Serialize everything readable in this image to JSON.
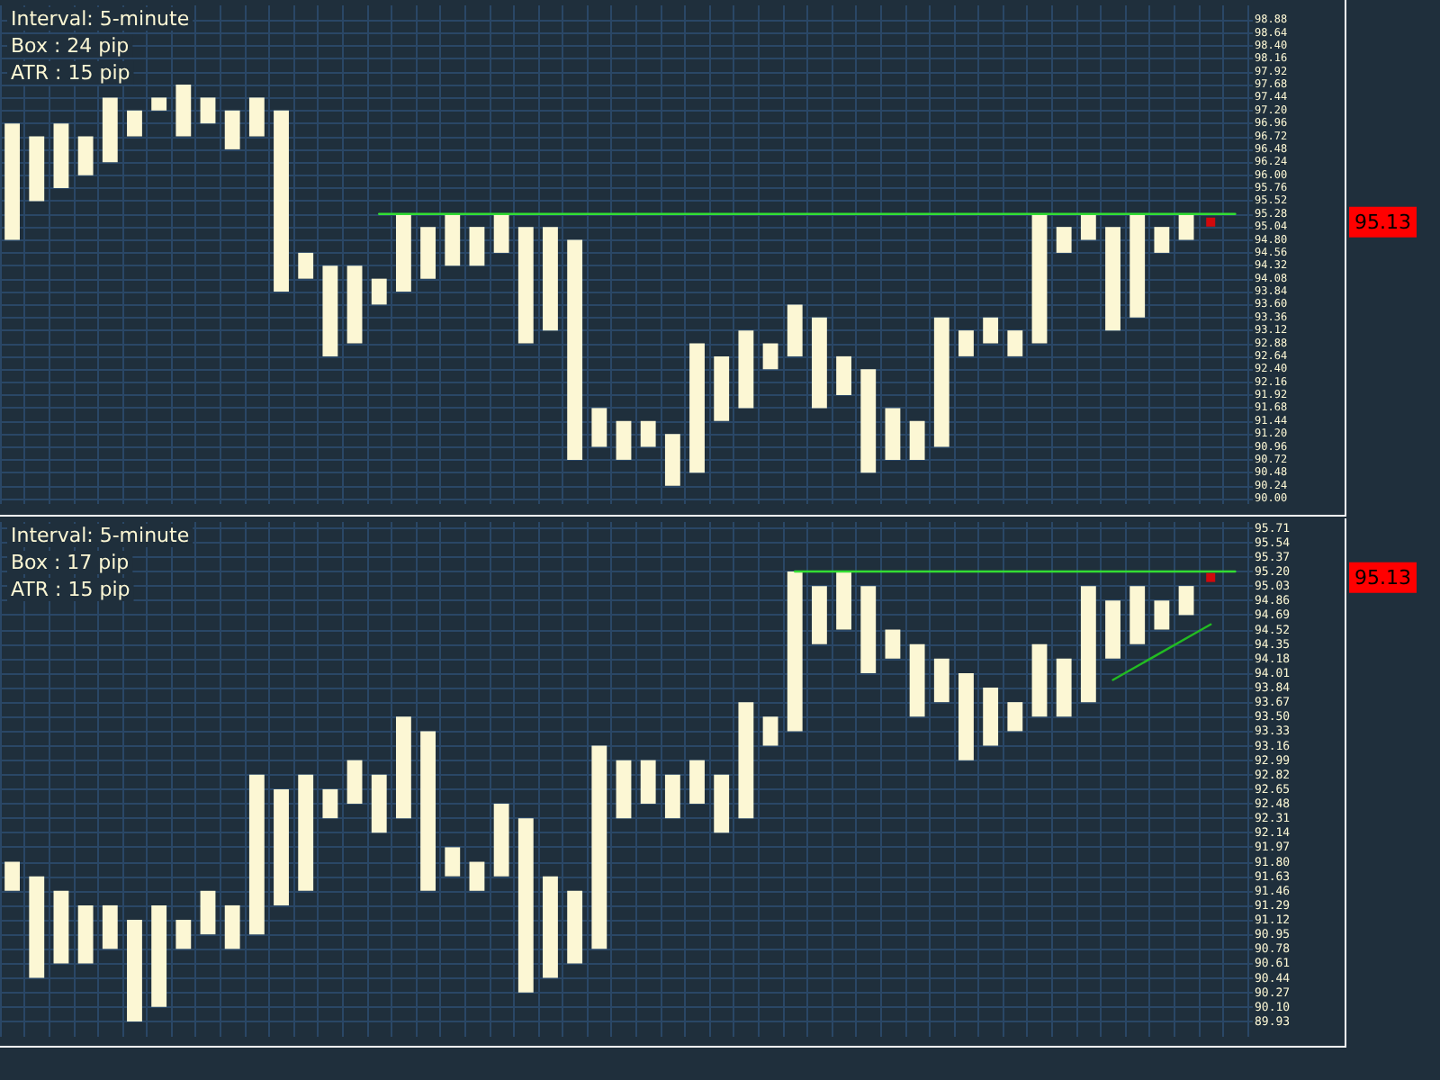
{
  "chart_data": [
    {
      "type": "bar",
      "categories": [
        null,
        null,
        null,
        null,
        null,
        null,
        null,
        null,
        null,
        null,
        null,
        null,
        null,
        null,
        null,
        null,
        null,
        null,
        null,
        null,
        null,
        null,
        null,
        null,
        null,
        null,
        null,
        null,
        null,
        null,
        null,
        null,
        null,
        null,
        null,
        null,
        null,
        null,
        null,
        null,
        null,
        null,
        null,
        null,
        null,
        null,
        null,
        null,
        null,
        null,
        null
      ],
      "ylim": [
        89.9,
        99.15
      ],
      "yticks": [
        {
          "value": 90,
          "label": "90.00"
        },
        90.24,
        90.48,
        90.72,
        90.96,
        {
          "value": 91.2,
          "label": "91.20"
        },
        91.44,
        91.68,
        91.92,
        92.16,
        {
          "value": 92.4,
          "label": "92.40"
        },
        92.64,
        92.88,
        93.12,
        93.36,
        {
          "value": 93.6,
          "label": "93.60"
        },
        93.84,
        94.08,
        94.32,
        94.56,
        {
          "value": 94.8,
          "label": "94.80"
        },
        95.04,
        95.28,
        95.52,
        95.76,
        {
          "value": 96,
          "label": "96.00"
        },
        96.24,
        96.48,
        96.72,
        96.96,
        {
          "value": 97.2,
          "label": "97.20"
        },
        97.44,
        97.68,
        97.92,
        98.16,
        {
          "value": 98.4,
          "label": "98.40"
        },
        98.64,
        98.88
      ],
      "grid": true,
      "tick_labels": "y",
      "annotations": [
        "Interval: 5-minute",
        "Box : 24 pip",
        "ATR : 15 pip",
        "95.13"
      ],
      "series": [
        {
          "color": "#fcf7d4",
          "values": [
            2.16,
            null,
            1.2,
            null,
            1.2,
            null,
            0.24,
            null,
            0.48,
            null,
            0.72,
            null,
            0.48,
            null,
            1.44,
            null,
            1.44,
            null,
            0.96,
            null,
            0.72,
            null,
            1.92,
            null,
            0.72,
            null,
            0.48,
            null,
            2.4,
            null,
            1.44,
            null,
            0.96,
            null,
            0.72,
            null,
            0.96,
            null,
            2.4,
            null,
            0.48,
            null,
            2.4,
            null,
            0.48,
            null,
            1.92,
            null,
            0.48,
            null,
            null
          ],
          "base": [
            94.8,
            null,
            95.76,
            null,
            96.24,
            null,
            97.2,
            null,
            96.96,
            null,
            96.72,
            null,
            94.08,
            null,
            92.88,
            null,
            93.84,
            null,
            94.32,
            null,
            94.56,
            null,
            93.12,
            null,
            90.96,
            null,
            90.96,
            null,
            90.48,
            null,
            91.68,
            null,
            92.64,
            null,
            91.92,
            null,
            90.72,
            null,
            90.96,
            null,
            92.88,
            null,
            92.88,
            null,
            94.8,
            null,
            93.36,
            null,
            94.8,
            null,
            null
          ]
        },
        {
          "color": "#fcf7d4",
          "values": [
            null,
            1.2,
            null,
            0.72,
            null,
            0.48,
            null,
            0.96,
            null,
            0.72,
            null,
            3.36,
            null,
            1.68,
            null,
            0.48,
            null,
            0.96,
            null,
            0.72,
            null,
            2.16,
            null,
            4.08,
            null,
            0.72,
            null,
            0.96,
            null,
            1.2,
            null,
            0.48,
            null,
            1.68,
            null,
            1.92,
            null,
            0.72,
            null,
            0.48,
            null,
            0.48,
            null,
            0.48,
            null,
            1.92,
            null,
            0.48,
            null,
            null,
            null
          ],
          "base": [
            null,
            95.52,
            null,
            96,
            null,
            96.72,
            null,
            96.72,
            null,
            96.48,
            null,
            93.84,
            null,
            92.64,
            null,
            93.6,
            null,
            94.08,
            null,
            94.32,
            null,
            92.88,
            null,
            90.72,
            null,
            90.72,
            null,
            90.24,
            null,
            91.44,
            null,
            92.4,
            null,
            91.68,
            null,
            90.48,
            null,
            90.72,
            null,
            92.64,
            null,
            92.64,
            null,
            94.56,
            null,
            93.12,
            null,
            94.56,
            null,
            null,
            null
          ]
        },
        {
          "type": "line",
          "marker": "none",
          "color": "#33dd33",
          "values": [
            null,
            null,
            null,
            null,
            null,
            null,
            null,
            null,
            null,
            null,
            null,
            null,
            null,
            null,
            null,
            95.28,
            null,
            null,
            null,
            null,
            null,
            null,
            null,
            null,
            null,
            null,
            null,
            null,
            null,
            null,
            null,
            null,
            null,
            null,
            null,
            null,
            null,
            null,
            null,
            null,
            null,
            null,
            null,
            null,
            null,
            null,
            null,
            null,
            null,
            null,
            95.28
          ]
        },
        {
          "type": "scatter",
          "marker": "square",
          "color": "#ff0000",
          "values": [
            null,
            null,
            null,
            null,
            null,
            null,
            null,
            null,
            null,
            null,
            null,
            null,
            null,
            null,
            null,
            null,
            null,
            null,
            null,
            null,
            null,
            null,
            null,
            null,
            null,
            null,
            null,
            null,
            null,
            null,
            null,
            null,
            null,
            null,
            null,
            null,
            null,
            null,
            null,
            null,
            null,
            null,
            null,
            null,
            null,
            null,
            null,
            null,
            null,
            95.13,
            null
          ]
        }
      ]
    },
    {
      "type": "bar",
      "categories": [
        null,
        null,
        null,
        null,
        null,
        null,
        null,
        null,
        null,
        null,
        null,
        null,
        null,
        null,
        null,
        null,
        null,
        null,
        null,
        null,
        null,
        null,
        null,
        null,
        null,
        null,
        null,
        null,
        null,
        null,
        null,
        null,
        null,
        null,
        null,
        null,
        null,
        null,
        null,
        null,
        null,
        null,
        null,
        null,
        null,
        null,
        null,
        null,
        null,
        null,
        null
      ],
      "ylim": [
        89.75,
        95.78
      ],
      "yticks": [
        89.93,
        {
          "value": 90.1,
          "label": "90.10"
        },
        90.27,
        90.44,
        90.61,
        90.78,
        90.95,
        91.12,
        91.29,
        91.46,
        91.63,
        {
          "value": 91.8,
          "label": "91.80"
        },
        91.97,
        92.14,
        92.31,
        92.48,
        92.65,
        92.82,
        92.99,
        93.16,
        93.33,
        {
          "value": 93.5,
          "label": "93.50"
        },
        93.67,
        93.84,
        94.01,
        94.18,
        94.35,
        94.52,
        94.69,
        94.86,
        95.03,
        {
          "value": 95.2,
          "label": "95.20"
        },
        95.37,
        95.54,
        95.71
      ],
      "grid": true,
      "tick_labels": "y",
      "annotations": [
        "Interval: 5-minute",
        "Box : 17 pip",
        "ATR : 15 pip",
        "95.13"
      ],
      "series": [
        {
          "color": "#fcf7d4",
          "values": [
            0.34,
            null,
            0.85,
            null,
            0.51,
            null,
            1.19,
            null,
            0.51,
            null,
            1.87,
            null,
            1.36,
            null,
            0.51,
            null,
            1.19,
            null,
            0.34,
            null,
            0.85,
            null,
            1.19,
            null,
            2.38,
            null,
            0.51,
            null,
            0.51,
            null,
            1.36,
            null,
            1.87,
            null,
            0.68,
            null,
            0.34,
            null,
            0.51,
            null,
            0.68,
            null,
            0.85,
            null,
            1.36,
            null,
            0.68,
            null,
            0.34,
            null,
            null
          ],
          "base": [
            91.46,
            null,
            90.61,
            null,
            90.78,
            null,
            90.1,
            null,
            90.95,
            null,
            90.95,
            null,
            91.46,
            null,
            92.48,
            null,
            92.31,
            null,
            91.63,
            null,
            91.63,
            null,
            90.44,
            null,
            90.78,
            null,
            92.48,
            null,
            92.48,
            null,
            92.31,
            null,
            93.33,
            null,
            94.52,
            null,
            94.18,
            null,
            93.67,
            null,
            93.16,
            null,
            93.5,
            null,
            93.67,
            null,
            94.35,
            null,
            94.69,
            null,
            null
          ]
        },
        {
          "color": "#fcf7d4",
          "values": [
            null,
            1.19,
            null,
            0.68,
            null,
            1.19,
            null,
            0.34,
            null,
            0.51,
            null,
            1.36,
            null,
            0.34,
            null,
            0.68,
            null,
            1.87,
            null,
            0.34,
            null,
            2.04,
            null,
            0.85,
            null,
            0.68,
            null,
            0.51,
            null,
            0.68,
            null,
            0.34,
            null,
            0.68,
            null,
            1.02,
            null,
            0.85,
            null,
            1.02,
            null,
            0.34,
            null,
            0.68,
            null,
            0.68,
            null,
            0.34,
            null,
            null,
            null
          ],
          "base": [
            null,
            90.44,
            null,
            90.61,
            null,
            89.93,
            null,
            90.78,
            null,
            90.78,
            null,
            91.29,
            null,
            92.31,
            null,
            92.14,
            null,
            91.46,
            null,
            91.46,
            null,
            90.27,
            null,
            90.61,
            null,
            92.31,
            null,
            92.31,
            null,
            92.14,
            null,
            93.16,
            null,
            94.35,
            null,
            94.01,
            null,
            93.5,
            null,
            92.99,
            null,
            93.33,
            null,
            93.5,
            null,
            94.18,
            null,
            94.52,
            null,
            null,
            null
          ]
        },
        {
          "type": "line",
          "marker": "none",
          "color": "#33dd33",
          "values": [
            null,
            null,
            null,
            null,
            null,
            null,
            null,
            null,
            null,
            null,
            null,
            null,
            null,
            null,
            null,
            null,
            null,
            null,
            null,
            null,
            null,
            null,
            null,
            null,
            null,
            null,
            null,
            null,
            null,
            null,
            null,
            null,
            95.2,
            null,
            null,
            null,
            null,
            null,
            null,
            null,
            null,
            null,
            null,
            null,
            null,
            null,
            null,
            null,
            null,
            null,
            95.2
          ]
        },
        {
          "type": "line",
          "marker": "none",
          "color": "#22bb22",
          "values": [
            null,
            null,
            null,
            null,
            null,
            null,
            null,
            null,
            null,
            null,
            null,
            null,
            null,
            null,
            null,
            null,
            null,
            null,
            null,
            null,
            null,
            null,
            null,
            null,
            null,
            null,
            null,
            null,
            null,
            null,
            null,
            null,
            null,
            null,
            null,
            null,
            null,
            null,
            null,
            null,
            null,
            null,
            null,
            null,
            null,
            93.93,
            null,
            null,
            null,
            94.58,
            null
          ]
        },
        {
          "type": "scatter",
          "marker": "square",
          "color": "#ff0000",
          "values": [
            null,
            null,
            null,
            null,
            null,
            null,
            null,
            null,
            null,
            null,
            null,
            null,
            null,
            null,
            null,
            null,
            null,
            null,
            null,
            null,
            null,
            null,
            null,
            null,
            null,
            null,
            null,
            null,
            null,
            null,
            null,
            null,
            null,
            null,
            null,
            null,
            null,
            null,
            null,
            null,
            null,
            null,
            null,
            null,
            null,
            null,
            null,
            null,
            null,
            95.13,
            null
          ]
        }
      ]
    }
  ]
}
